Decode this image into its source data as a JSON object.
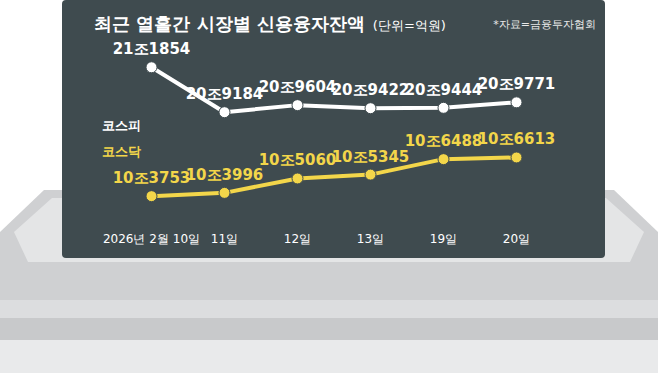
{
  "chart_data": {
    "type": "line",
    "title": "최근 열흘간 시장별 신용융자잔액",
    "subtitle": "(단위=억원)",
    "annotations": [
      "*자료=금융투자협회"
    ],
    "categories": [
      "2026년 2월 10일",
      "11일",
      "12일",
      "13일",
      "19일",
      "20일"
    ],
    "series": [
      {
        "name": "코스피",
        "color": "#ffffff",
        "values": [
          211854,
          209184,
          209604,
          209422,
          209444,
          209771
        ],
        "value_labels": [
          "21조1854",
          "20조9184",
          "20조9604",
          "20조9422",
          "20조9444",
          "20조9771"
        ]
      },
      {
        "name": "코스닥",
        "color": "#f3d64a",
        "axis": "y2",
        "values": [
          103753,
          103996,
          105060,
          105345,
          106488,
          106613
        ],
        "value_labels": [
          "10조3753",
          "10조3996",
          "10조5060",
          "10조5345",
          "10조6488",
          "10조6613"
        ]
      }
    ],
    "ylim": [
      202300,
      213000
    ],
    "y2lim": [
      101400,
      114700
    ],
    "marker": "circle",
    "data_labels": true,
    "tick_labels": "x",
    "grid": false
  }
}
